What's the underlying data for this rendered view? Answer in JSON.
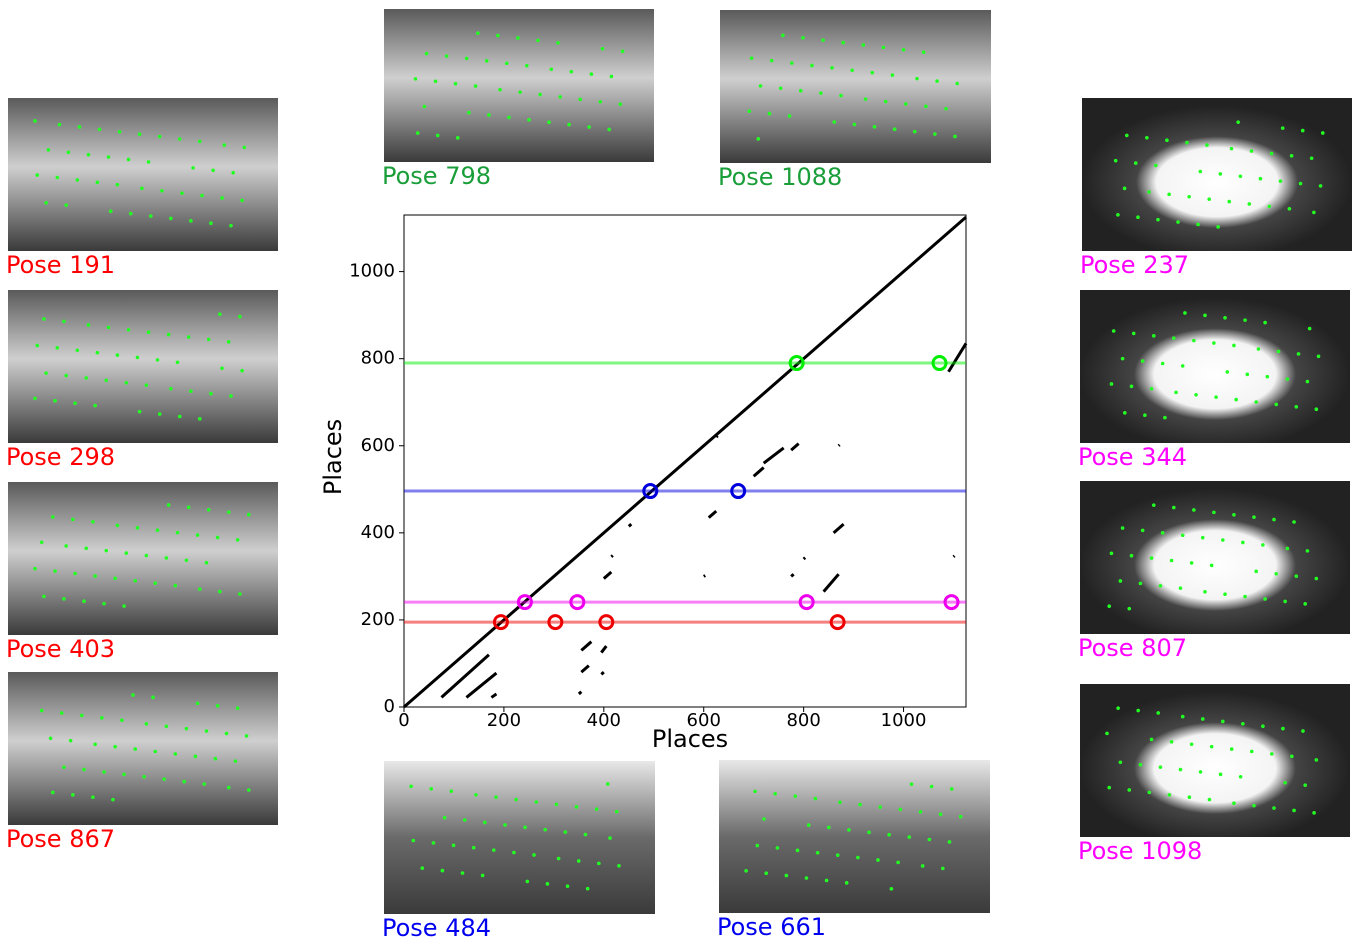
{
  "chart_data": {
    "type": "scatter",
    "xlabel": "Places",
    "ylabel": "Places",
    "xlim": [
      0,
      1125
    ],
    "ylim": [
      0,
      1130
    ],
    "xticks": [
      0,
      200,
      400,
      600,
      800,
      1000
    ],
    "yticks": [
      0,
      200,
      400,
      600,
      800,
      1000
    ],
    "diagonal": {
      "color": "#000000",
      "x": [
        0,
        1125
      ],
      "y": [
        0,
        1125
      ]
    },
    "loops": [
      {
        "color": "#00ee00",
        "y": 790,
        "x": [
          786,
          1072
        ]
      },
      {
        "color": "#0000dd",
        "y": 496,
        "x": [
          493,
          669
        ]
      },
      {
        "color": "#ee00ee",
        "y": 241,
        "x": [
          242,
          347,
          806,
          1096
        ]
      },
      {
        "color": "#ee0000",
        "y": 195,
        "x": [
          194,
          303,
          405,
          868
        ]
      }
    ],
    "segments": [
      [
        75,
        22,
        170,
        120
      ],
      [
        125,
        22,
        185,
        78
      ],
      [
        175,
        22,
        185,
        30
      ],
      [
        350,
        30,
        355,
        35
      ],
      [
        355,
        80,
        370,
        95
      ],
      [
        355,
        130,
        375,
        150
      ],
      [
        395,
        75,
        400,
        80
      ],
      [
        395,
        125,
        405,
        140
      ],
      [
        400,
        295,
        415,
        310
      ],
      [
        415,
        345,
        418,
        348
      ],
      [
        450,
        415,
        455,
        420
      ],
      [
        600,
        300,
        603,
        302
      ],
      [
        610,
        435,
        625,
        450
      ],
      [
        625,
        620,
        628,
        623
      ],
      [
        700,
        530,
        720,
        550
      ],
      [
        720,
        560,
        760,
        595
      ],
      [
        775,
        300,
        780,
        305
      ],
      [
        775,
        590,
        790,
        605
      ],
      [
        800,
        340,
        803,
        343
      ],
      [
        840,
        265,
        870,
        305
      ],
      [
        860,
        400,
        880,
        420
      ],
      [
        870,
        600,
        872,
        602
      ],
      [
        1100,
        345,
        1102,
        347
      ],
      [
        1090,
        770,
        1125,
        835
      ]
    ]
  },
  "images": [
    {
      "caption": "Pose 191",
      "color": "#ff0000"
    },
    {
      "caption": "Pose 298",
      "color": "#ff0000"
    },
    {
      "caption": "Pose 403",
      "color": "#ff0000"
    },
    {
      "caption": "Pose 867",
      "color": "#ff0000"
    },
    {
      "caption": "Pose 798",
      "color": "#1a9e3a"
    },
    {
      "caption": "Pose 1088",
      "color": "#1a9e3a"
    },
    {
      "caption": "Pose 484",
      "color": "#0000ee"
    },
    {
      "caption": "Pose 661",
      "color": "#0000ee"
    },
    {
      "caption": "Pose 237",
      "color": "#ff00ff"
    },
    {
      "caption": "Pose 344",
      "color": "#ff00ff"
    },
    {
      "caption": "Pose 807",
      "color": "#ff00ff"
    },
    {
      "caption": "Pose 1098",
      "color": "#ff00ff"
    }
  ]
}
